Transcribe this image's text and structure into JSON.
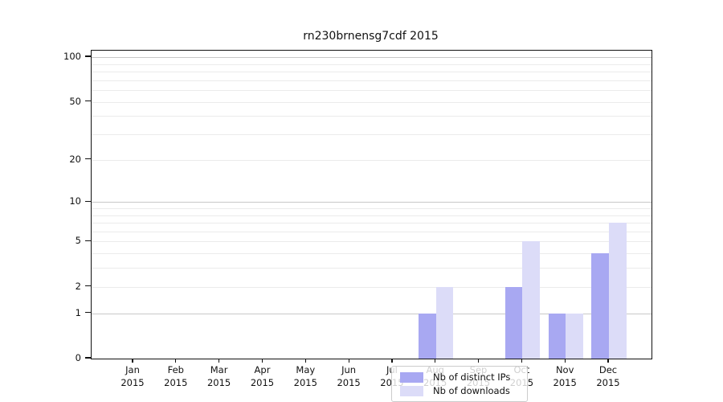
{
  "title": "rn230brnensg7cdf 2015",
  "legend": {
    "items": [
      {
        "label": "Nb of distinct IPs",
        "color": "#a8a8f2",
        "name": "distinct-ips"
      },
      {
        "label": "Nb of downloads",
        "color": "#dcdcf8",
        "name": "downloads"
      }
    ]
  },
  "axes": {
    "y_tick_labels": [
      "0",
      "1",
      "2",
      "5",
      "10",
      "20",
      "50",
      "100"
    ],
    "x_year_label": "2015"
  },
  "chart_data": {
    "type": "bar",
    "title": "rn230brnensg7cdf 2015",
    "categories": [
      "Jan",
      "Feb",
      "Mar",
      "Apr",
      "May",
      "Jun",
      "Jul",
      "Aug",
      "Sep",
      "Oct",
      "Nov",
      "Dec"
    ],
    "x_second_line": "2015",
    "series": [
      {
        "name": "Nb of distinct IPs",
        "color": "#a8a8f2",
        "values": [
          0,
          0,
          0,
          0,
          0,
          0,
          0,
          1,
          0,
          2,
          1,
          4
        ]
      },
      {
        "name": "Nb of downloads",
        "color": "#dcdcf8",
        "values": [
          0,
          0,
          0,
          0,
          0,
          0,
          0,
          2,
          0,
          5,
          1,
          7
        ]
      }
    ],
    "xlabel": "",
    "ylabel": "",
    "yscale": "log1p",
    "ylim": [
      0,
      111
    ],
    "y_ticks": [
      0,
      1,
      2,
      5,
      10,
      20,
      50,
      100
    ],
    "y_major_gridlines": [
      1,
      10,
      100
    ],
    "y_minor_gridlines": [
      2,
      3,
      4,
      5,
      6,
      7,
      8,
      9,
      20,
      30,
      40,
      50,
      60,
      70,
      80,
      90
    ],
    "grid": true,
    "legend_position": "lower center"
  }
}
